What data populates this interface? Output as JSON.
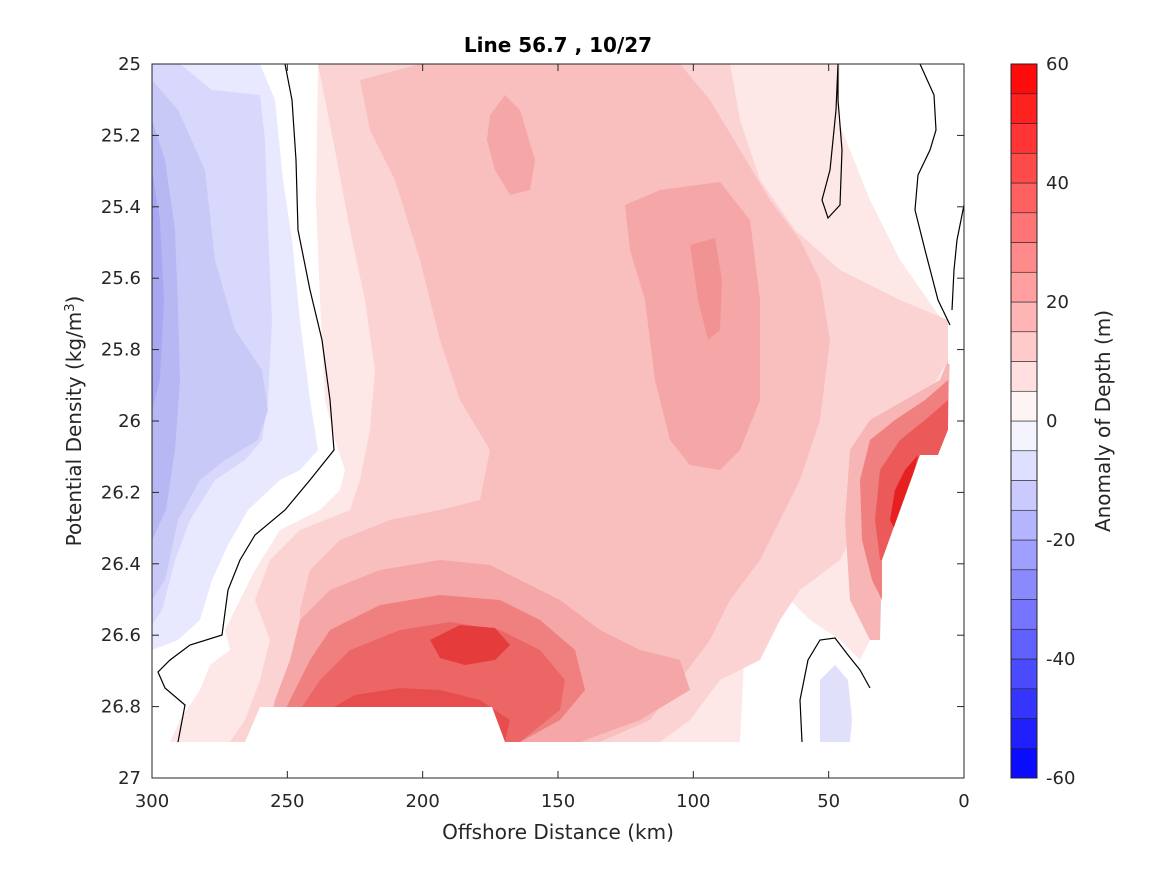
{
  "chart_data": {
    "type": "contourf",
    "title": "Line 56.7 , 10/27",
    "xlabel": "Offshore Distance (km)",
    "ylabel_main": "Potential Density (kg/m",
    "ylabel_sup": "3",
    "ylabel_close": ")",
    "xlim": [
      300,
      0
    ],
    "ylim": [
      25,
      27
    ],
    "y_reversed": true,
    "x_ticks": [
      "300",
      "250",
      "200",
      "150",
      "100",
      "50",
      "0"
    ],
    "y_ticks": [
      "25",
      "25.2",
      "25.4",
      "25.6",
      "25.8",
      "26",
      "26.2",
      "26.4",
      "26.6",
      "26.8",
      "27"
    ],
    "grid": false,
    "colorbar": {
      "label": "Anomaly of Depth (m)",
      "clim": [
        -60,
        60
      ],
      "step": 5,
      "low_color": "#0000ff",
      "mid_color": "#ffffff",
      "high_color": "#ff0000",
      "tick_values": [
        -60,
        -40,
        -20,
        0,
        20,
        40,
        60
      ],
      "ticks": [
        "-60",
        "-40",
        "-20",
        "0",
        "20",
        "40",
        "60"
      ]
    },
    "data_coverage": {
      "x": [
        0,
        300
      ],
      "density": [
        25,
        26.9
      ]
    },
    "zero_contour_line_color": "#000000",
    "features": [
      {
        "x": [
          270,
          300
        ],
        "density": [
          25.0,
          26.7
        ],
        "anomaly": -15
      },
      {
        "x": [
          165,
          205
        ],
        "density": [
          26.55,
          26.85
        ],
        "anomaly": 50
      },
      {
        "x": [
          15,
          30
        ],
        "density": [
          26.0,
          26.4
        ],
        "anomaly": 55
      },
      {
        "x": [
          90,
          110
        ],
        "density": [
          25.2,
          26.2
        ],
        "anomaly": 25
      },
      {
        "x": [
          40,
          50
        ],
        "density": [
          26.7,
          26.85
        ],
        "anomaly": -8
      }
    ]
  }
}
